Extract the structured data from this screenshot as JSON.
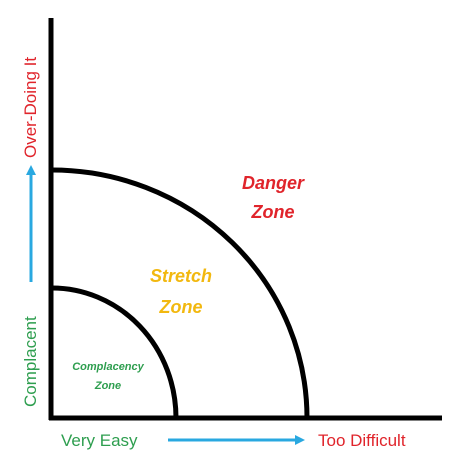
{
  "x_axis": {
    "low_label": "Very Easy",
    "high_label": "Too Difficult",
    "low_color": "#2e9e4f",
    "high_color": "#e0242b"
  },
  "y_axis": {
    "low_label": "Complacent",
    "high_label": "Over-Doing It",
    "low_color": "#2e9e4f",
    "high_color": "#e0242b"
  },
  "arrow_color": "#29a8e0",
  "axis_color": "#000000",
  "zones": {
    "complacency": {
      "line1": "Complacency",
      "line2": "Zone",
      "color": "#2e9e4f"
    },
    "stretch": {
      "line1": "Stretch",
      "line2": "Zone",
      "color": "#f2b80f"
    },
    "danger": {
      "line1": "Danger",
      "line2": "Zone",
      "color": "#e0242b"
    }
  }
}
